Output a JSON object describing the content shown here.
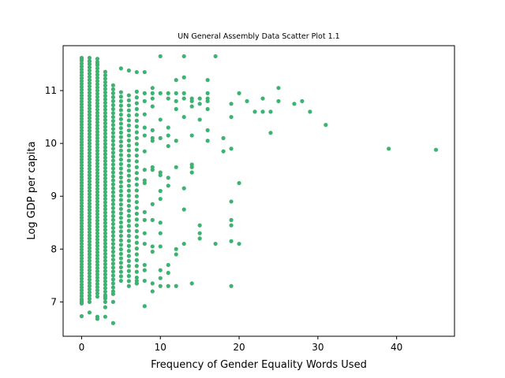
{
  "chart_data": {
    "type": "scatter",
    "title": "UN General Assembly Data Scatter Plot 1.1",
    "xlabel": "Frequency of Gender Equality Words Used",
    "ylabel": "Log GDP per capita",
    "xlim": [
      -2.35,
      47.35
    ],
    "ylim": [
      6.35,
      11.85
    ],
    "xticks": [
      0,
      10,
      20,
      30,
      40
    ],
    "yticks": [
      7,
      8,
      9,
      10,
      11
    ],
    "grid": false,
    "color": "#3cb371",
    "columns": [
      {
        "x": 0,
        "y_min": 7.0,
        "y_max": 11.65,
        "step": 0.055
      },
      {
        "x": 1,
        "y_min": 7.0,
        "y_max": 11.62,
        "step": 0.06
      },
      {
        "x": 2,
        "y_min": 7.1,
        "y_max": 11.6,
        "step": 0.06
      },
      {
        "x": 3,
        "y_min": 7.0,
        "y_max": 11.4,
        "step": 0.065
      },
      {
        "x": 4,
        "y_min": 7.2,
        "y_max": 11.1,
        "step": 0.075
      },
      {
        "x": 5,
        "y_min": 7.4,
        "y_max": 11.05,
        "step": 0.085
      },
      {
        "x": 6,
        "y_min": 7.3,
        "y_max": 11.0,
        "step": 0.095
      },
      {
        "x": 7,
        "y_min": 7.35,
        "y_max": 11.0,
        "step": 0.11
      }
    ],
    "points": [
      [
        0,
        6.73
      ],
      [
        0,
        6.97
      ],
      [
        0,
        7.03
      ],
      [
        0,
        11.6
      ],
      [
        1,
        6.8
      ],
      [
        1,
        11.55
      ],
      [
        2,
        6.68
      ],
      [
        2,
        6.72
      ],
      [
        2,
        11.5
      ],
      [
        3,
        6.72
      ],
      [
        3,
        6.9
      ],
      [
        3,
        7.1
      ],
      [
        4,
        6.6
      ],
      [
        4,
        7.0
      ],
      [
        4,
        7.15
      ],
      [
        5,
        11.42
      ],
      [
        6,
        11.38
      ],
      [
        7,
        11.35
      ],
      [
        7,
        7.35
      ],
      [
        7,
        7.4
      ],
      [
        8,
        6.92
      ],
      [
        8,
        11.35
      ],
      [
        8,
        8.7
      ],
      [
        8,
        8.55
      ],
      [
        8,
        8.3
      ],
      [
        8,
        8.1
      ],
      [
        8,
        9.5
      ],
      [
        8,
        9.3
      ],
      [
        8,
        9.25
      ],
      [
        8,
        9.85
      ],
      [
        8,
        10.15
      ],
      [
        8,
        10.3
      ],
      [
        8,
        10.55
      ],
      [
        8,
        10.8
      ],
      [
        8,
        10.95
      ],
      [
        8,
        7.6
      ],
      [
        8,
        7.7
      ],
      [
        8,
        7.4
      ],
      [
        9,
        7.2
      ],
      [
        9,
        7.35
      ],
      [
        9,
        7.95
      ],
      [
        9,
        8.05
      ],
      [
        9,
        8.55
      ],
      [
        9,
        8.85
      ],
      [
        9,
        9.5
      ],
      [
        9,
        9.55
      ],
      [
        9,
        10.05
      ],
      [
        9,
        10.1
      ],
      [
        9,
        10.25
      ],
      [
        9,
        10.7
      ],
      [
        9,
        10.85
      ],
      [
        9,
        10.95
      ],
      [
        9,
        11.05
      ],
      [
        10,
        7.3
      ],
      [
        10,
        7.45
      ],
      [
        10,
        7.6
      ],
      [
        10,
        8.05
      ],
      [
        10,
        8.3
      ],
      [
        10,
        8.5
      ],
      [
        10,
        8.95
      ],
      [
        10,
        9.1
      ],
      [
        10,
        9.4
      ],
      [
        10,
        9.45
      ],
      [
        10,
        10.1
      ],
      [
        10,
        10.45
      ],
      [
        10,
        10.95
      ],
      [
        10,
        11.65
      ],
      [
        11,
        7.3
      ],
      [
        11,
        7.55
      ],
      [
        11,
        7.7
      ],
      [
        11,
        9.2
      ],
      [
        11,
        9.35
      ],
      [
        11,
        9.95
      ],
      [
        11,
        10.15
      ],
      [
        11,
        10.3
      ],
      [
        11,
        10.85
      ],
      [
        11,
        10.95
      ],
      [
        12,
        7.3
      ],
      [
        12,
        7.9
      ],
      [
        12,
        8.0
      ],
      [
        12,
        9.55
      ],
      [
        12,
        10.05
      ],
      [
        12,
        10.65
      ],
      [
        12,
        10.8
      ],
      [
        12,
        10.95
      ],
      [
        12,
        11.2
      ],
      [
        13,
        8.1
      ],
      [
        13,
        8.75
      ],
      [
        13,
        9.15
      ],
      [
        13,
        10.5
      ],
      [
        13,
        10.85
      ],
      [
        13,
        10.95
      ],
      [
        13,
        11.25
      ],
      [
        13,
        11.65
      ],
      [
        14,
        7.35
      ],
      [
        14,
        9.45
      ],
      [
        14,
        9.55
      ],
      [
        14,
        9.6
      ],
      [
        14,
        10.15
      ],
      [
        14,
        10.7
      ],
      [
        14,
        10.8
      ],
      [
        14,
        10.85
      ],
      [
        15,
        8.2
      ],
      [
        15,
        8.3
      ],
      [
        15,
        8.45
      ],
      [
        15,
        10.45
      ],
      [
        15,
        10.75
      ],
      [
        15,
        10.85
      ],
      [
        16,
        10.05
      ],
      [
        16,
        10.25
      ],
      [
        16,
        10.65
      ],
      [
        16,
        10.8
      ],
      [
        16,
        10.85
      ],
      [
        16,
        10.95
      ],
      [
        16,
        11.2
      ],
      [
        17,
        8.1
      ],
      [
        17,
        11.65
      ],
      [
        18,
        9.85
      ],
      [
        18,
        10.1
      ],
      [
        19,
        7.3
      ],
      [
        19,
        8.15
      ],
      [
        19,
        8.45
      ],
      [
        19,
        8.55
      ],
      [
        19,
        8.9
      ],
      [
        19,
        9.9
      ],
      [
        19,
        10.5
      ],
      [
        19,
        10.75
      ],
      [
        20,
        8.1
      ],
      [
        20,
        9.25
      ],
      [
        20,
        10.95
      ],
      [
        21,
        10.8
      ],
      [
        22,
        10.6
      ],
      [
        23,
        10.6
      ],
      [
        23,
        10.85
      ],
      [
        24,
        10.2
      ],
      [
        24,
        10.6
      ],
      [
        25,
        10.8
      ],
      [
        25,
        11.05
      ],
      [
        27,
        10.75
      ],
      [
        28,
        10.8
      ],
      [
        29,
        10.6
      ],
      [
        31,
        10.35
      ],
      [
        39,
        9.9
      ],
      [
        45,
        9.88
      ]
    ]
  }
}
